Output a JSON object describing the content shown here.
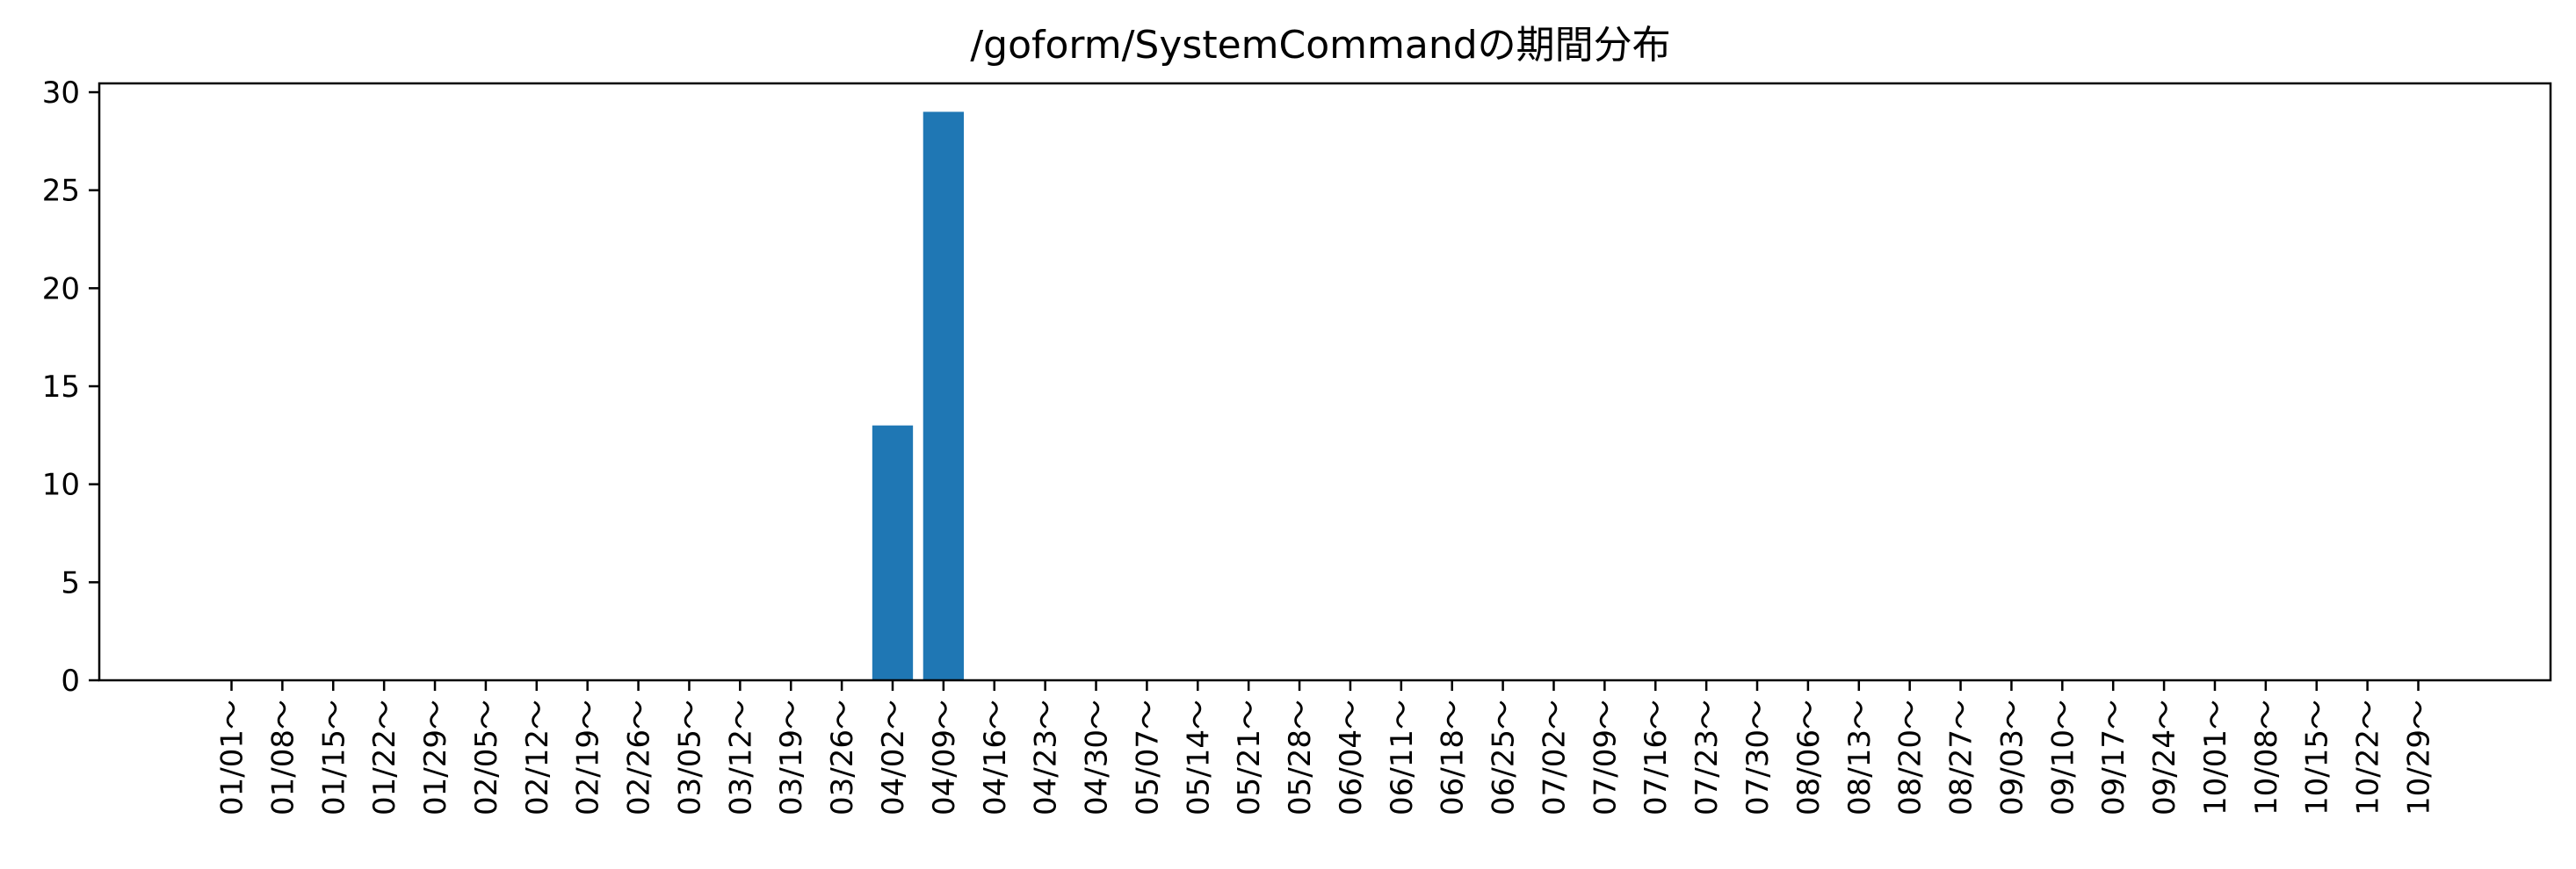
{
  "chart_data": {
    "type": "bar",
    "title": "/goform/SystemCommandの期間分布",
    "xlabel": "",
    "ylabel": "",
    "ylim": [
      0,
      30.45
    ],
    "yticks": [
      0,
      5,
      10,
      15,
      20,
      25,
      30
    ],
    "categories": [
      "01/01～",
      "01/08～",
      "01/15～",
      "01/22～",
      "01/29～",
      "02/05～",
      "02/12～",
      "02/19～",
      "02/26～",
      "03/05～",
      "03/12～",
      "03/19～",
      "03/26～",
      "04/02～",
      "04/09～",
      "04/16～",
      "04/23～",
      "04/30～",
      "05/07～",
      "05/14～",
      "05/21～",
      "05/28～",
      "06/04～",
      "06/11～",
      "06/18～",
      "06/25～",
      "07/02～",
      "07/09～",
      "07/16～",
      "07/23～",
      "07/30～",
      "08/06～",
      "08/13～",
      "08/20～",
      "08/27～",
      "09/03～",
      "09/10～",
      "09/17～",
      "09/24～",
      "10/01～",
      "10/08～",
      "10/15～",
      "10/22～",
      "10/29～"
    ],
    "values": [
      0,
      0,
      0,
      0,
      0,
      0,
      0,
      0,
      0,
      0,
      0,
      0,
      0,
      13,
      29,
      0,
      0,
      0,
      0,
      0,
      0,
      0,
      0,
      0,
      0,
      0,
      0,
      0,
      0,
      0,
      0,
      0,
      0,
      0,
      0,
      0,
      0,
      0,
      0,
      0,
      0,
      0,
      0,
      0
    ],
    "bar_color": "#1f77b4",
    "grid": false,
    "legend": "none"
  }
}
